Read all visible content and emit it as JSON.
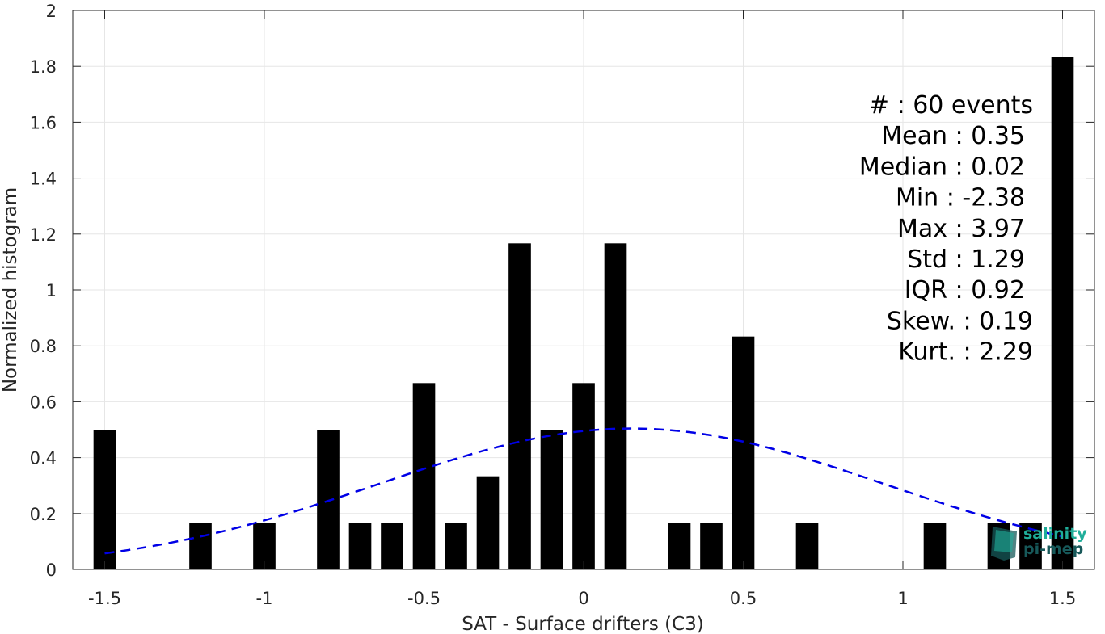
{
  "chart_data": {
    "type": "bar",
    "xlabel": "SAT - Surface drifters (C3)",
    "ylabel": "Normalized histogram",
    "xlim": [
      -1.6,
      1.6
    ],
    "ylim": [
      0,
      2
    ],
    "grid": true,
    "bar_width": 0.07,
    "x_ticks": [
      -1.5,
      -1,
      -0.5,
      0,
      0.5,
      1,
      1.5
    ],
    "x_tick_labels": [
      "-1.5",
      "-1",
      "-0.5",
      "0",
      "0.5",
      "1",
      "1.5"
    ],
    "y_ticks": [
      0,
      0.2,
      0.4,
      0.6,
      0.8,
      1,
      1.2,
      1.4,
      1.6,
      1.8,
      2
    ],
    "y_tick_labels": [
      "0",
      "0.2",
      "0.4",
      "0.6",
      "0.8",
      "1",
      "1.2",
      "1.4",
      "1.6",
      "1.8",
      "2"
    ],
    "bars": {
      "x": [
        -1.5,
        -1.2,
        -1.0,
        -0.8,
        -0.7,
        -0.6,
        -0.5,
        -0.4,
        -0.3,
        -0.2,
        -0.1,
        0.0,
        0.1,
        0.3,
        0.4,
        0.5,
        0.7,
        1.1,
        1.3,
        1.4,
        1.5
      ],
      "values": [
        0.5,
        0.1667,
        0.1667,
        0.5,
        0.1667,
        0.1667,
        0.6667,
        0.1667,
        0.3333,
        1.1667,
        0.5,
        0.6667,
        1.1667,
        0.1667,
        0.1667,
        0.8333,
        0.1667,
        0.1667,
        0.1667,
        0.1667,
        1.8333
      ],
      "color": "#000000"
    },
    "fit_curve": {
      "style": "dashed",
      "color": "#0000e6",
      "mean": 0.15,
      "std": 0.7913,
      "x_range": [
        -1.5,
        1.5
      ]
    },
    "stats_lines": [
      "#  : 60 events",
      "Mean : 0.35",
      "Median : 0.02",
      "Min : -2.38",
      "Max : 3.97",
      "Std : 1.29",
      "IQR : 0.92",
      "Skew. : 0.19",
      "Kurt. : 2.29"
    ]
  },
  "logo": {
    "line1": "salinity",
    "line2": "pi-mep",
    "color1": "#1fae9a",
    "color2": "#17595a"
  }
}
